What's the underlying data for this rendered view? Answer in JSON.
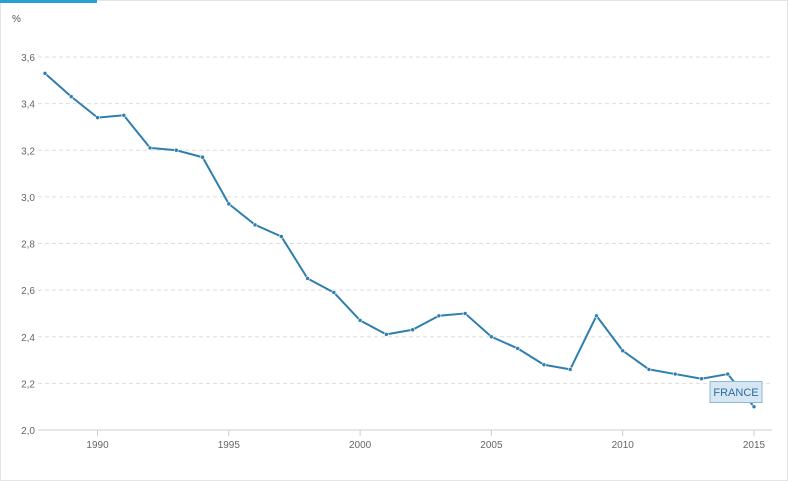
{
  "colors": {
    "series": "#2e7fad",
    "tab_accent": "#2a9fd6"
  },
  "chart_data": {
    "type": "line",
    "ylabel": "%",
    "ylim": [
      2.0,
      3.6
    ],
    "xlim": [
      1988,
      2015
    ],
    "y_ticks": [
      "2,0",
      "2,2",
      "2,4",
      "2,6",
      "2,8",
      "3,0",
      "3,2",
      "3,4",
      "3,6"
    ],
    "y_tick_values": [
      2.0,
      2.2,
      2.4,
      2.6,
      2.8,
      3.0,
      3.2,
      3.4,
      3.6
    ],
    "x_ticks": [
      "1990",
      "1995",
      "2000",
      "2005",
      "2010",
      "2015"
    ],
    "x_tick_values": [
      1990,
      1995,
      2000,
      2005,
      2010,
      2015
    ],
    "grid": true,
    "series": [
      {
        "name": "FRANCE",
        "x": [
          1988,
          1989,
          1990,
          1991,
          1992,
          1993,
          1994,
          1995,
          1996,
          1997,
          1998,
          1999,
          2000,
          2001,
          2002,
          2003,
          2004,
          2005,
          2006,
          2007,
          2008,
          2009,
          2010,
          2011,
          2012,
          2013,
          2014,
          2015
        ],
        "values": [
          3.53,
          3.43,
          3.34,
          3.35,
          3.21,
          3.2,
          3.17,
          2.97,
          2.88,
          2.83,
          2.65,
          2.59,
          2.47,
          2.41,
          2.43,
          2.49,
          2.5,
          2.4,
          2.35,
          2.28,
          2.26,
          2.49,
          2.34,
          2.26,
          2.24,
          2.22,
          2.24,
          2.1
        ]
      }
    ],
    "tooltip": {
      "label": "FRANCE"
    }
  }
}
